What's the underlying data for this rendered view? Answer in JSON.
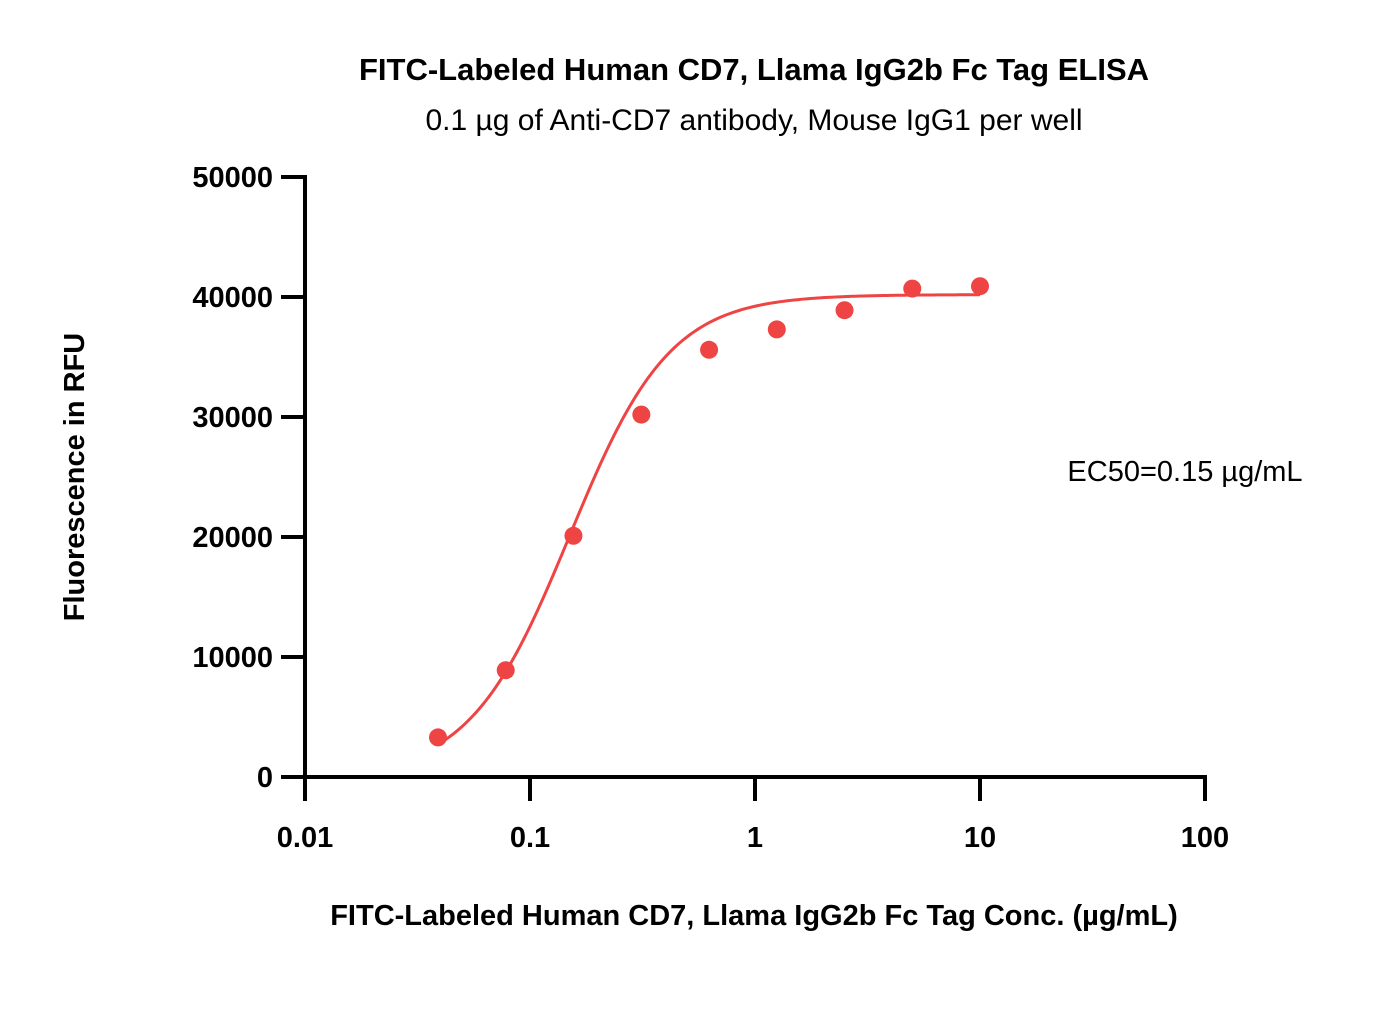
{
  "chart_data": {
    "type": "scatter",
    "title": "FITC-Labeled Human CD7, Llama IgG2b Fc Tag ELISA",
    "subtitle": "0.1 µg of Anti-CD7 antibody, Mouse IgG1 per well",
    "xlabel": "FITC-Labeled Human CD7, Llama IgG2b Fc Tag Conc. (µg/mL)",
    "ylabel": "Fluorescence in RFU",
    "xscale": "log",
    "xlim": [
      0.01,
      100
    ],
    "ylim": [
      0,
      50000
    ],
    "xticks": [
      0.01,
      0.1,
      1,
      10,
      100
    ],
    "xtick_labels": [
      "0.01",
      "0.1",
      "1",
      "10",
      "100"
    ],
    "yticks": [
      0,
      10000,
      20000,
      30000,
      40000,
      50000
    ],
    "ytick_labels": [
      "0",
      "10000",
      "20000",
      "30000",
      "40000",
      "50000"
    ],
    "grid": false,
    "color": "#ee4444",
    "series": [
      {
        "x": [
          0.039,
          0.078,
          0.156,
          0.3125,
          0.625,
          1.25,
          2.5,
          5,
          10
        ],
        "y": [
          3300,
          8900,
          20100,
          30200,
          35600,
          37300,
          38900,
          40700,
          40900
        ]
      }
    ],
    "fit": {
      "model": "4PL",
      "bottom": 0,
      "top": 40200,
      "ec50": 0.15,
      "hill": 1.95
    },
    "annotation": "EC50=0.15 µg/mL"
  }
}
